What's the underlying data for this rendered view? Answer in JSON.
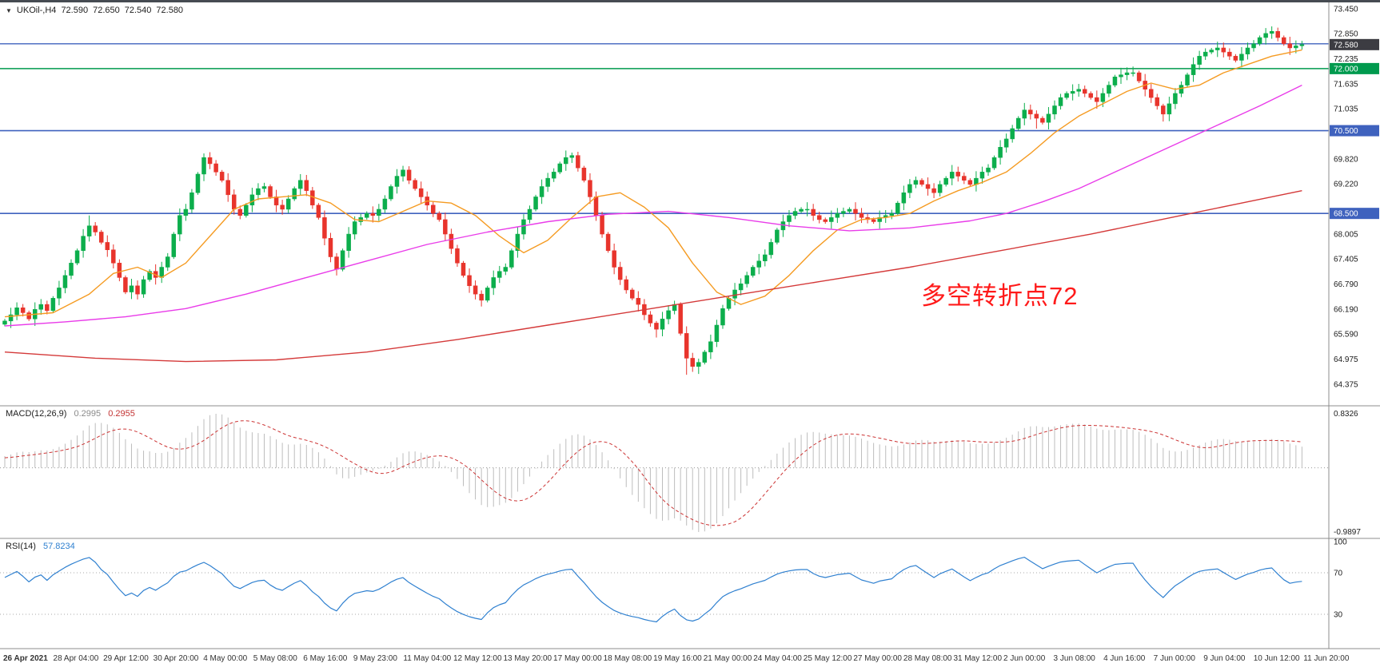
{
  "window": {
    "menu_arrow": "▼",
    "symbol_period": "UKOil-,H4",
    "open": "72.590",
    "high": "72.650",
    "low": "72.540",
    "close": "72.580"
  },
  "chart_data": [
    {
      "type": "candlestick",
      "name": "main-price-chart",
      "symbol": "UKOil-",
      "timeframe": "H4",
      "ylim": [
        63.85,
        73.6
      ],
      "y_ticks": [
        "73.450",
        "72.850",
        "72.235",
        "71.635",
        "71.035",
        "69.820",
        "69.220",
        "68.005",
        "67.405",
        "66.790",
        "66.190",
        "65.590",
        "64.975",
        "64.375"
      ],
      "x_axis_labels": [
        "26 Apr 2021",
        "28 Apr 04:00",
        "29 Apr 12:00",
        "30 Apr 20:00",
        "4 May 00:00",
        "5 May 08:00",
        "6 May 16:00",
        "9 May 23:00",
        "11 May 04:00",
        "12 May 12:00",
        "13 May 20:00",
        "17 May 00:00",
        "18 May 08:00",
        "19 May 16:00",
        "21 May 00:00",
        "24 May 04:00",
        "25 May 12:00",
        "27 May 00:00",
        "28 May 08:00",
        "31 May 12:00",
        "2 Jun 00:00",
        "3 Jun 08:00",
        "4 Jun 16:00",
        "7 Jun 00:00",
        "9 Jun 04:00",
        "10 Jun 12:00",
        "11 Jun 20:00"
      ],
      "hlines": [
        {
          "price": 72.6,
          "color": "#3f62be",
          "width": 1.3
        },
        {
          "price": 72.0,
          "color": "#009a4e",
          "width": 1.6
        },
        {
          "price": 70.5,
          "color": "#3f62be",
          "width": 1.6
        },
        {
          "price": 68.5,
          "color": "#3f62be",
          "width": 1.6
        }
      ],
      "badges": [
        {
          "text": "72.000",
          "price": 72.0,
          "bg": "#009a4e",
          "fg": "#ffffff"
        },
        {
          "text": "70.500",
          "price": 70.5,
          "bg": "#3f62be",
          "fg": "#ffffff"
        },
        {
          "text": "68.500",
          "price": 68.5,
          "bg": "#3f62be",
          "fg": "#ffffff"
        },
        {
          "text": "72.580",
          "price": 72.58,
          "bg": "#3c3c42",
          "fg": "#ffffff"
        }
      ],
      "annotation": {
        "text": "多空转折点72",
        "color": "#ff1a1a",
        "x": 1152,
        "y": 345
      },
      "colors": {
        "up": "#0cae4c",
        "down": "#e8342c",
        "ma_fast": "#f59b22",
        "ma_mid": "#e93ce9",
        "ma_slow": "#d43939"
      },
      "prehistory": [
        64.9,
        65.05,
        64.95,
        65.1,
        65.0,
        65.15,
        65.05,
        65.2,
        65.1,
        65.25,
        65.15,
        65.3,
        65.2,
        65.35,
        65.25,
        65.4,
        65.3,
        65.45,
        65.35,
        65.5,
        65.4,
        65.55,
        65.45,
        65.6,
        65.5,
        65.65,
        65.55,
        65.7,
        65.6,
        65.75
      ],
      "closes": [
        65.9,
        66.05,
        66.22,
        66.1,
        65.95,
        66.18,
        66.3,
        66.15,
        66.45,
        66.7,
        67.0,
        67.3,
        67.6,
        67.95,
        68.2,
        68.05,
        67.8,
        67.62,
        67.3,
        66.95,
        66.6,
        66.75,
        66.55,
        66.9,
        67.1,
        66.95,
        67.2,
        67.45,
        68.0,
        68.45,
        68.6,
        69.0,
        69.45,
        69.85,
        69.7,
        69.5,
        69.3,
        68.95,
        68.6,
        68.45,
        68.7,
        68.95,
        69.1,
        69.15,
        68.9,
        68.7,
        68.6,
        68.85,
        69.1,
        69.3,
        69.05,
        68.7,
        68.4,
        67.9,
        67.45,
        67.15,
        67.6,
        68.0,
        68.3,
        68.4,
        68.5,
        68.45,
        68.6,
        68.85,
        69.15,
        69.4,
        69.55,
        69.3,
        69.1,
        68.9,
        68.7,
        68.5,
        68.35,
        68.0,
        67.65,
        67.3,
        67.0,
        66.75,
        66.55,
        66.4,
        66.7,
        66.95,
        67.1,
        67.2,
        67.6,
        68.0,
        68.35,
        68.6,
        68.9,
        69.15,
        69.35,
        69.5,
        69.7,
        69.85,
        69.9,
        69.6,
        69.3,
        68.9,
        68.45,
        68.0,
        67.6,
        67.2,
        66.9,
        66.65,
        66.45,
        66.3,
        66.05,
        65.85,
        65.7,
        65.95,
        66.15,
        66.3,
        65.6,
        65.0,
        64.8,
        64.9,
        65.15,
        65.4,
        65.8,
        66.2,
        66.45,
        66.65,
        66.8,
        67.0,
        67.2,
        67.35,
        67.5,
        67.8,
        68.1,
        68.3,
        68.45,
        68.55,
        68.6,
        68.6,
        68.45,
        68.35,
        68.3,
        68.4,
        68.5,
        68.55,
        68.6,
        68.5,
        68.4,
        68.35,
        68.3,
        68.4,
        68.45,
        68.5,
        68.75,
        69.0,
        69.2,
        69.3,
        69.2,
        69.1,
        69.0,
        69.2,
        69.35,
        69.5,
        69.4,
        69.3,
        69.2,
        69.35,
        69.5,
        69.6,
        69.85,
        70.1,
        70.3,
        70.55,
        70.8,
        71.0,
        70.9,
        70.8,
        70.7,
        70.9,
        71.1,
        71.3,
        71.4,
        71.45,
        71.5,
        71.4,
        71.3,
        71.2,
        71.4,
        71.6,
        71.8,
        71.85,
        71.9,
        71.9,
        71.7,
        71.5,
        71.3,
        71.1,
        70.9,
        71.15,
        71.4,
        71.6,
        71.85,
        72.1,
        72.3,
        72.4,
        72.45,
        72.5,
        72.4,
        72.3,
        72.2,
        72.35,
        72.5,
        72.6,
        72.75,
        72.85,
        72.9,
        72.75,
        72.6,
        72.5,
        72.55,
        72.58
      ],
      "wick_overrides": {
        "14": {
          "h": 68.45
        },
        "33": {
          "h": 69.95
        },
        "49": {
          "h": 69.45
        },
        "55": {
          "l": 67.0
        },
        "66": {
          "h": 69.65
        },
        "79": {
          "l": 66.25
        },
        "94": {
          "h": 69.97
        },
        "108": {
          "l": 65.5
        },
        "113": {
          "l": 64.6
        },
        "115": {
          "l": 64.62
        },
        "171": {
          "l": 70.55
        },
        "187": {
          "h": 72.05
        },
        "192": {
          "l": 70.72
        },
        "201": {
          "h": 72.65
        },
        "209": {
          "h": 72.98
        },
        "210": {
          "h": 73.02
        }
      },
      "moving_averages": [
        {
          "name": "ma-fast-orange",
          "color": "#f59b22",
          "points": [
            [
              0,
              66.0
            ],
            [
              8,
              66.1
            ],
            [
              14,
              66.55
            ],
            [
              18,
              67.05
            ],
            [
              22,
              67.2
            ],
            [
              26,
              66.95
            ],
            [
              30,
              67.3
            ],
            [
              34,
              67.95
            ],
            [
              38,
              68.6
            ],
            [
              42,
              68.85
            ],
            [
              46,
              68.9
            ],
            [
              50,
              68.95
            ],
            [
              54,
              68.75
            ],
            [
              58,
              68.35
            ],
            [
              62,
              68.3
            ],
            [
              66,
              68.55
            ],
            [
              70,
              68.8
            ],
            [
              74,
              68.75
            ],
            [
              78,
              68.45
            ],
            [
              82,
              67.95
            ],
            [
              86,
              67.55
            ],
            [
              90,
              67.85
            ],
            [
              94,
              68.4
            ],
            [
              98,
              68.9
            ],
            [
              102,
              69.0
            ],
            [
              106,
              68.65
            ],
            [
              110,
              68.15
            ],
            [
              114,
              67.3
            ],
            [
              118,
              66.6
            ],
            [
              122,
              66.3
            ],
            [
              126,
              66.5
            ],
            [
              130,
              67.0
            ],
            [
              134,
              67.6
            ],
            [
              138,
              68.1
            ],
            [
              142,
              68.35
            ],
            [
              146,
              68.4
            ],
            [
              150,
              68.5
            ],
            [
              154,
              68.8
            ],
            [
              158,
              69.05
            ],
            [
              162,
              69.25
            ],
            [
              166,
              69.5
            ],
            [
              170,
              69.95
            ],
            [
              174,
              70.45
            ],
            [
              178,
              70.85
            ],
            [
              182,
              71.15
            ],
            [
              186,
              71.45
            ],
            [
              190,
              71.65
            ],
            [
              194,
              71.5
            ],
            [
              198,
              71.6
            ],
            [
              202,
              71.9
            ],
            [
              206,
              72.1
            ],
            [
              210,
              72.3
            ],
            [
              215,
              72.45
            ]
          ]
        },
        {
          "name": "ma-mid-magenta",
          "color": "#e93ce9",
          "points": [
            [
              0,
              65.78
            ],
            [
              10,
              65.88
            ],
            [
              20,
              66.0
            ],
            [
              30,
              66.2
            ],
            [
              40,
              66.55
            ],
            [
              50,
              66.95
            ],
            [
              60,
              67.35
            ],
            [
              70,
              67.75
            ],
            [
              80,
              68.05
            ],
            [
              90,
              68.3
            ],
            [
              100,
              68.48
            ],
            [
              110,
              68.55
            ],
            [
              120,
              68.4
            ],
            [
              130,
              68.2
            ],
            [
              140,
              68.08
            ],
            [
              150,
              68.15
            ],
            [
              160,
              68.32
            ],
            [
              166,
              68.5
            ],
            [
              172,
              68.78
            ],
            [
              178,
              69.1
            ],
            [
              184,
              69.5
            ],
            [
              190,
              69.9
            ],
            [
              196,
              70.3
            ],
            [
              202,
              70.7
            ],
            [
              208,
              71.1
            ],
            [
              215,
              71.6
            ]
          ]
        },
        {
          "name": "ma-slow-red",
          "color": "#d43939",
          "points": [
            [
              0,
              65.15
            ],
            [
              15,
              65.0
            ],
            [
              30,
              64.92
            ],
            [
              45,
              64.96
            ],
            [
              60,
              65.15
            ],
            [
              75,
              65.45
            ],
            [
              90,
              65.8
            ],
            [
              105,
              66.15
            ],
            [
              120,
              66.5
            ],
            [
              135,
              66.85
            ],
            [
              150,
              67.2
            ],
            [
              165,
              67.6
            ],
            [
              180,
              68.0
            ],
            [
              195,
              68.45
            ],
            [
              205,
              68.75
            ],
            [
              215,
              69.05
            ]
          ]
        }
      ]
    },
    {
      "type": "bar",
      "name": "MACD",
      "label": "MACD(12,26,9)",
      "value1": "0.2995",
      "value2": "0.2955",
      "axis_top": "0.8326",
      "axis_bottom": "-0.9897",
      "histogram_color": "#bdbdbd",
      "signal_color": "#cc3333",
      "derived_from": "main closes, EMA12-EMA26 with SMA9 signal"
    },
    {
      "type": "line",
      "name": "RSI",
      "label": "RSI(14)",
      "value": "57.8234",
      "line_color": "#2f80d0",
      "levels": [
        70,
        30
      ],
      "axis_labels": [
        [
          "100",
          100
        ],
        [
          "70",
          70
        ],
        [
          "30",
          30
        ]
      ],
      "range": [
        0,
        100
      ]
    }
  ]
}
